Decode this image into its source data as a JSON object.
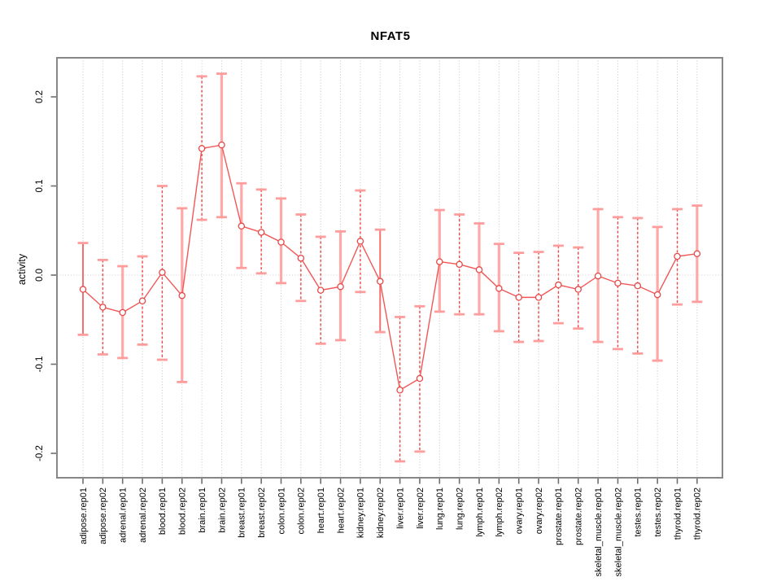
{
  "chart_data": {
    "type": "scatter",
    "title": "NFAT5",
    "xlabel": "",
    "ylabel": "activity",
    "ylim": [
      -0.228,
      0.244
    ],
    "grid": "vertical dotted gridlines at every category; dotted horizontal line at zero; no legend",
    "y_ticks": [
      {
        "label": "0.2",
        "value": 0.2
      },
      {
        "label": "0.1",
        "value": 0.1
      },
      {
        "label": "0.0",
        "value": 0.0
      },
      {
        "label": "-0.1",
        "value": -0.1
      },
      {
        "label": "-0.2",
        "value": -0.2
      }
    ],
    "categories": [
      "adipose.rep01",
      "adipose.rep02",
      "adrenal.rep01",
      "adrenal.rep02",
      "blood.rep01",
      "blood.rep02",
      "brain.rep01",
      "brain.rep02",
      "breast.rep01",
      "breast.rep02",
      "colon.rep01",
      "colon.rep02",
      "heart.rep01",
      "heart.rep02",
      "kidney.rep01",
      "kidney.rep02",
      "liver.rep01",
      "liver.rep02",
      "lung.rep01",
      "lung.rep02",
      "lymph.rep01",
      "lymph.rep02",
      "ovary.rep01",
      "ovary.rep02",
      "prostate.rep01",
      "prostate.rep02",
      "skeletal_muscle.rep01",
      "skeletal_muscle.rep02",
      "testes.rep01",
      "testes.rep02",
      "thyroid.rep01",
      "thyroid.rep02"
    ],
    "series": [
      {
        "name": "activity",
        "values": [
          -0.016,
          -0.036,
          -0.042,
          -0.029,
          0.003,
          -0.023,
          0.142,
          0.146,
          0.055,
          0.048,
          0.037,
          0.019,
          -0.017,
          -0.013,
          0.038,
          -0.007,
          -0.129,
          -0.116,
          0.015,
          0.012,
          0.006,
          -0.015,
          -0.025,
          -0.025,
          -0.011,
          -0.016,
          -0.001,
          -0.009,
          -0.012,
          -0.022,
          0.021,
          0.024
        ],
        "ci_high": [
          0.036,
          0.017,
          0.01,
          0.021,
          0.1,
          0.075,
          0.223,
          0.226,
          0.103,
          0.096,
          0.086,
          0.068,
          0.043,
          0.049,
          0.095,
          0.051,
          -0.047,
          -0.035,
          0.073,
          0.068,
          0.058,
          0.035,
          0.025,
          0.026,
          0.033,
          0.031,
          0.074,
          0.065,
          0.064,
          0.054,
          0.074,
          0.078
        ],
        "ci_low": [
          -0.067,
          -0.089,
          -0.093,
          -0.078,
          -0.095,
          -0.12,
          0.062,
          0.065,
          0.008,
          0.002,
          -0.009,
          -0.029,
          -0.077,
          -0.073,
          -0.019,
          -0.064,
          -0.209,
          -0.198,
          -0.041,
          -0.044,
          -0.044,
          -0.063,
          -0.075,
          -0.074,
          -0.054,
          -0.06,
          -0.075,
          -0.083,
          -0.088,
          -0.096,
          -0.033,
          -0.03
        ],
        "bar_styles": [
          "thin",
          "dashed",
          "thick",
          "dashed",
          "dashed",
          "thick",
          "dashed",
          "thick",
          "thick",
          "dashed",
          "thick",
          "dashed",
          "dashed",
          "thick",
          "dashed",
          "thin",
          "dashed",
          "dashed",
          "thick",
          "dashed",
          "thick",
          "thick",
          "dashed",
          "dashed",
          "dashed",
          "dashed",
          "thick",
          "dashed",
          "dashed",
          "thick",
          "dashed",
          "thick"
        ]
      }
    ],
    "colors": {
      "point_stroke": "#e64949",
      "point_fill": "#ffffff",
      "series_line": "#f15757",
      "dashed_bar": "#ef4545",
      "thick_bar": "#ffa8a8",
      "thin_bar": "#f37070",
      "bar_cap": "#ff9d9d",
      "frame": "#878787",
      "grid": "#c4c4c4",
      "zero_line": "#cfcfcf",
      "axis_tick": "#6e6e6e",
      "tick_label": "#000000"
    }
  }
}
